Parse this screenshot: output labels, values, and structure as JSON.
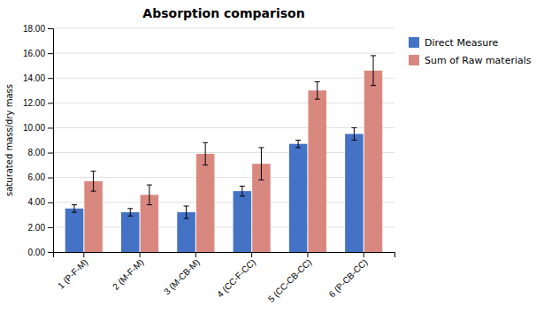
{
  "chart_data": {
    "type": "bar",
    "title": "Absorption comparison",
    "ylabel": "saturated mass/dry mass",
    "categories": [
      "1 (P-F-M)",
      "2 (M-F-M)",
      "3 (M-CB-M)",
      "4 (CC-F-CC)",
      "5 (CC-CB-CC)",
      "6 (P-CB-CC)"
    ],
    "series": [
      {
        "name": "Direct Measure",
        "color": "#4472C4",
        "values": [
          3.5,
          3.2,
          3.2,
          4.9,
          8.7,
          9.5
        ],
        "errors": [
          0.3,
          0.3,
          0.5,
          0.4,
          0.3,
          0.5
        ]
      },
      {
        "name": "Sum of Raw materials",
        "color": "#D98880",
        "values": [
          5.7,
          4.6,
          7.9,
          7.1,
          13.0,
          14.6
        ],
        "errors": [
          0.8,
          0.8,
          0.9,
          1.3,
          0.7,
          1.2
        ]
      }
    ],
    "ylim": [
      0,
      18.0
    ],
    "yticks": [
      {
        "value": 0.0,
        "label": "0.00"
      },
      {
        "value": 2.0,
        "label": "2.00"
      },
      {
        "value": 4.0,
        "label": "4.00"
      },
      {
        "value": 6.0,
        "label": "6.00"
      },
      {
        "value": 8.0,
        "label": "8.00"
      },
      {
        "value": 10.0,
        "label": "10.00"
      },
      {
        "value": 12.0,
        "label": "12.00"
      },
      {
        "value": 14.0,
        "label": "14.00"
      },
      {
        "value": 16.0,
        "label": "16.00"
      },
      {
        "value": 18.0,
        "label": "18.00"
      }
    ],
    "grid": true,
    "legend": "right"
  }
}
